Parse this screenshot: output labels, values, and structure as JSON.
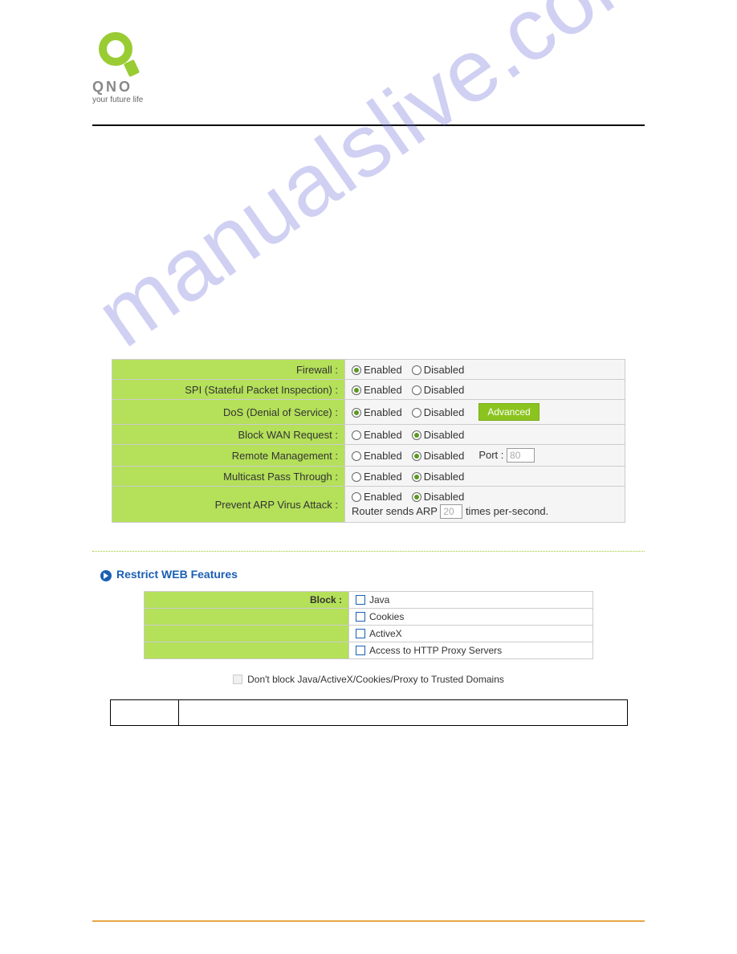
{
  "logo": {
    "brand": "QNO",
    "tagline": "your future life"
  },
  "watermark": "manualslive.com",
  "firewall_table": {
    "rows": [
      {
        "label": "Firewall :",
        "enabled_label": "Enabled",
        "disabled_label": "Disabled",
        "selected": "enabled",
        "has_advanced": false,
        "has_port": false,
        "has_arp": false
      },
      {
        "label": "SPI (Stateful Packet Inspection) :",
        "enabled_label": "Enabled",
        "disabled_label": "Disabled",
        "selected": "enabled",
        "has_advanced": false,
        "has_port": false,
        "has_arp": false
      },
      {
        "label": "DoS (Denial of Service) :",
        "enabled_label": "Enabled",
        "disabled_label": "Disabled",
        "selected": "enabled",
        "has_advanced": true,
        "advanced_label": "Advanced",
        "has_port": false,
        "has_arp": false
      },
      {
        "label": "Block WAN Request :",
        "enabled_label": "Enabled",
        "disabled_label": "Disabled",
        "selected": "disabled",
        "has_advanced": false,
        "has_port": false,
        "has_arp": false
      },
      {
        "label": "Remote Management :",
        "enabled_label": "Enabled",
        "disabled_label": "Disabled",
        "selected": "disabled",
        "has_advanced": false,
        "has_port": true,
        "port_label": "Port :",
        "port_value": "80",
        "has_arp": false
      },
      {
        "label": "Multicast Pass Through :",
        "enabled_label": "Enabled",
        "disabled_label": "Disabled",
        "selected": "disabled",
        "has_advanced": false,
        "has_port": false,
        "has_arp": false
      },
      {
        "label": "Prevent ARP Virus Attack :",
        "enabled_label": "Enabled",
        "disabled_label": "Disabled",
        "selected": "disabled",
        "has_advanced": false,
        "has_port": false,
        "has_arp": true,
        "arp_prefix": "Router sends ARP",
        "arp_value": "20",
        "arp_suffix": "times per-second."
      }
    ]
  },
  "restrict_section": {
    "title": "Restrict WEB Features",
    "block_label": "Block :",
    "items": [
      "Java",
      "Cookies",
      "ActiveX",
      "Access to HTTP Proxy Servers"
    ]
  },
  "trusted_domains_label": "Don't block Java/ActiveX/Cookies/Proxy to Trusted Domains",
  "colors": {
    "green_bg": "#b4e05a",
    "green_btn": "#8bc41f",
    "logo_green": "#99cc33",
    "blue_header": "#1a5fb4",
    "footer_orange": "#e8a847",
    "watermark": "rgba(120,120,220,0.35)"
  }
}
